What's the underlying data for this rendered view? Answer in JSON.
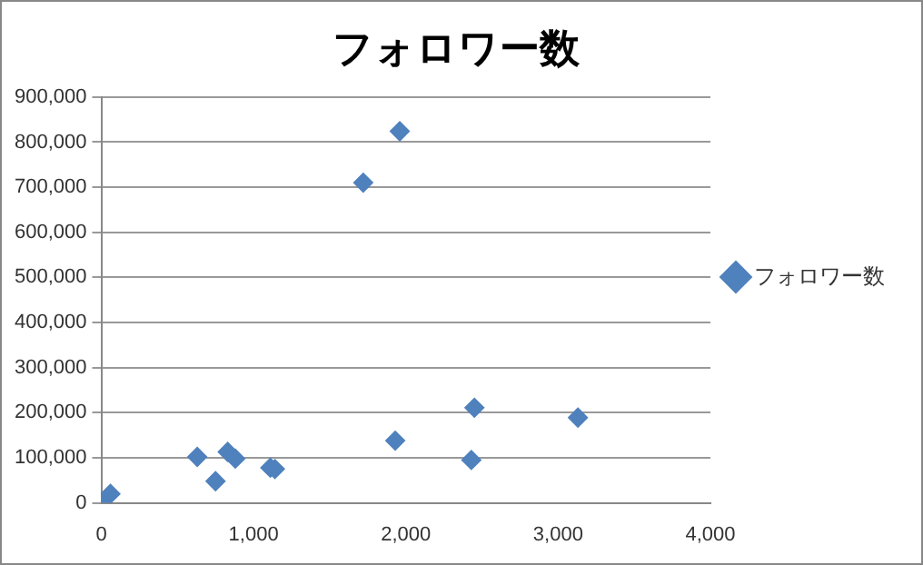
{
  "chart_data": {
    "type": "scatter",
    "title": "フォロワー数",
    "x": [
      0,
      60,
      630,
      750,
      830,
      880,
      1110,
      1140,
      1720,
      1960,
      1930,
      2450,
      2430,
      3130
    ],
    "series": [
      {
        "name": "フォロワー数",
        "color": "#4f81bd",
        "values": [
          0,
          20000,
          102000,
          48000,
          113000,
          98000,
          78000,
          75000,
          710000,
          824000,
          138000,
          211000,
          95000,
          189000
        ]
      }
    ],
    "xlim": [
      0,
      4000
    ],
    "xticks": [
      {
        "value": 0,
        "label": "0"
      },
      {
        "value": 1000,
        "label": "1,000"
      },
      {
        "value": 2000,
        "label": "2,000"
      },
      {
        "value": 3000,
        "label": "3,000"
      },
      {
        "value": 4000,
        "label": "4,000"
      }
    ],
    "ylim": [
      0,
      900000
    ],
    "yticks": [
      {
        "value": 0,
        "label": "0"
      },
      {
        "value": 100000,
        "label": "100,000"
      },
      {
        "value": 200000,
        "label": "200,000"
      },
      {
        "value": 300000,
        "label": "300,000"
      },
      {
        "value": 400000,
        "label": "400,000"
      },
      {
        "value": 500000,
        "label": "500,000"
      },
      {
        "value": 600000,
        "label": "600,000"
      },
      {
        "value": 700000,
        "label": "700,000"
      },
      {
        "value": 800000,
        "label": "800,000"
      },
      {
        "value": 900000,
        "label": "900,000"
      }
    ],
    "grid": "y",
    "legend": "right",
    "marker": "diamond"
  }
}
